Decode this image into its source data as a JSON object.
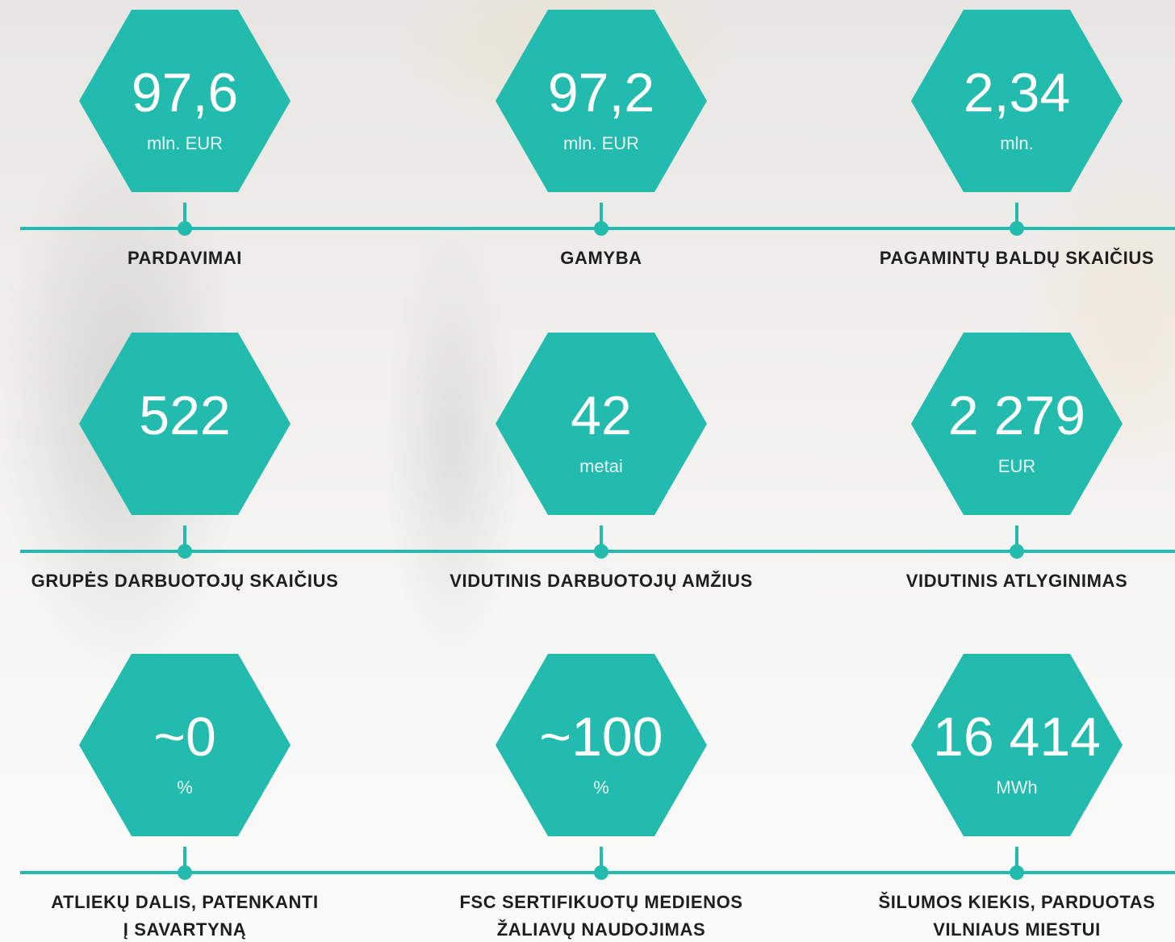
{
  "items": [
    {
      "value": "97,6",
      "unit": "mln. EUR",
      "label": [
        "PARDAVIMAI"
      ]
    },
    {
      "value": "97,2",
      "unit": "mln. EUR",
      "label": [
        "GAMYBA"
      ]
    },
    {
      "value": "2,34",
      "unit": "mln.",
      "label": [
        "PAGAMINTŲ BALDŲ SKAIČIUS"
      ]
    },
    {
      "value": "522",
      "label": [
        "GRUPĖS DARBUOTOJŲ SKAIČIUS"
      ]
    },
    {
      "value": "42",
      "unit": "metai",
      "label": [
        "VIDUTINIS DARBUOTOJŲ AMŽIUS"
      ]
    },
    {
      "value": "2 279",
      "unit": "EUR",
      "label": [
        "VIDUTINIS ATLYGINIMAS"
      ]
    },
    {
      "value": "~0",
      "unit": "%",
      "label": [
        "ATLIEKŲ DALIS, PATENKANTI",
        "Į SAVARTYNĄ"
      ]
    },
    {
      "value": "~100",
      "unit": "%",
      "label": [
        "FSC SERTIFIKUOTŲ MEDIENOS",
        "ŽALIAVŲ NAUDOJIMAS"
      ]
    },
    {
      "value": "16 414",
      "unit": "MWh",
      "label": [
        "ŠILUMOS KIEKIS, PARDUOTAS",
        "VILNIAUS MIESTUI"
      ]
    }
  ]
}
